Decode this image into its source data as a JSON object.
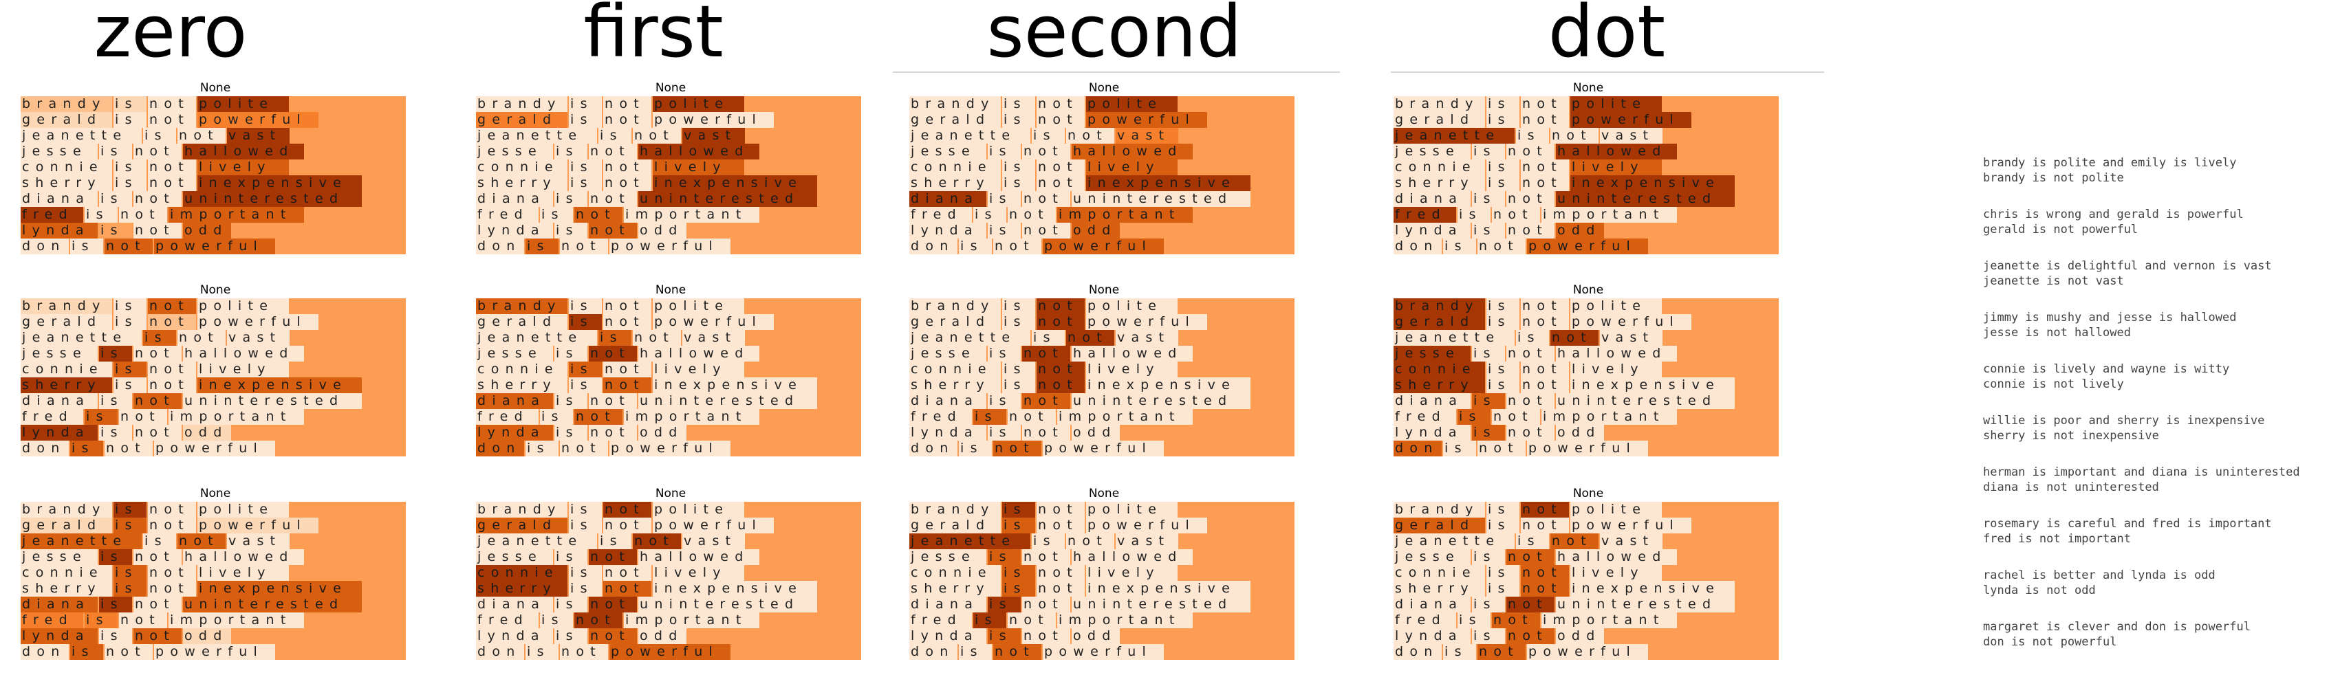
{
  "columns": [
    {
      "title": "zero",
      "panels": [
        {
          "label": "None",
          "rows": [
            [
              2,
              1,
              0,
              6
            ],
            [
              1,
              0,
              0,
              4
            ],
            [
              0,
              0,
              0,
              6
            ],
            [
              0,
              0,
              0,
              6
            ],
            [
              0,
              0,
              0,
              5
            ],
            [
              0,
              0,
              0,
              6
            ],
            [
              0,
              0,
              0,
              6
            ],
            [
              6,
              0,
              0,
              5
            ],
            [
              5,
              3,
              0,
              5
            ],
            [
              0,
              0,
              5,
              5
            ]
          ]
        },
        {
          "label": "None",
          "rows": [
            [
              1,
              0,
              5,
              0
            ],
            [
              0,
              0,
              2,
              0
            ],
            [
              0,
              5,
              0,
              0
            ],
            [
              0,
              6,
              0,
              0
            ],
            [
              0,
              5,
              0,
              0
            ],
            [
              6,
              0,
              0,
              5
            ],
            [
              0,
              0,
              5,
              0
            ],
            [
              0,
              5,
              0,
              0
            ],
            [
              6,
              0,
              0,
              1
            ],
            [
              0,
              5,
              0,
              0
            ]
          ]
        },
        {
          "label": "None",
          "rows": [
            [
              0,
              6,
              0,
              0
            ],
            [
              1,
              5,
              0,
              1
            ],
            [
              5,
              0,
              5,
              0
            ],
            [
              0,
              6,
              0,
              0
            ],
            [
              0,
              5,
              0,
              0
            ],
            [
              0,
              5,
              0,
              5
            ],
            [
              5,
              6,
              0,
              5
            ],
            [
              4,
              4,
              0,
              0
            ],
            [
              5,
              0,
              5,
              1
            ],
            [
              0,
              5,
              0,
              0
            ]
          ]
        }
      ]
    },
    {
      "title": "first",
      "panels": [
        {
          "label": "None",
          "rows": [
            [
              0,
              0,
              0,
              6
            ],
            [
              4,
              0,
              0,
              0
            ],
            [
              0,
              0,
              0,
              6
            ],
            [
              0,
              0,
              0,
              6
            ],
            [
              0,
              0,
              0,
              5
            ],
            [
              0,
              0,
              0,
              6
            ],
            [
              0,
              0,
              0,
              6
            ],
            [
              0,
              0,
              5,
              0
            ],
            [
              0,
              0,
              5,
              0
            ],
            [
              0,
              5,
              0,
              0
            ]
          ]
        },
        {
          "label": "None",
          "rows": [
            [
              5,
              0,
              0,
              0
            ],
            [
              0,
              6,
              0,
              0
            ],
            [
              0,
              5,
              0,
              0
            ],
            [
              0,
              0,
              6,
              0
            ],
            [
              0,
              5,
              0,
              0
            ],
            [
              0,
              0,
              5,
              0
            ],
            [
              5,
              0,
              0,
              0
            ],
            [
              0,
              0,
              5,
              0
            ],
            [
              5,
              0,
              0,
              0
            ],
            [
              5,
              0,
              0,
              0
            ]
          ]
        },
        {
          "label": "None",
          "rows": [
            [
              0,
              0,
              6,
              0
            ],
            [
              5,
              0,
              0,
              0
            ],
            [
              0,
              0,
              6,
              0
            ],
            [
              0,
              0,
              6,
              0
            ],
            [
              6,
              0,
              0,
              0
            ],
            [
              6,
              0,
              5,
              0
            ],
            [
              0,
              0,
              6,
              0
            ],
            [
              0,
              0,
              6,
              0
            ],
            [
              0,
              0,
              5,
              0
            ],
            [
              0,
              0,
              0,
              5
            ]
          ]
        }
      ]
    },
    {
      "title": "second",
      "panels": [
        {
          "label": "None",
          "rows": [
            [
              0,
              0,
              0,
              6
            ],
            [
              0,
              0,
              0,
              5
            ],
            [
              0,
              0,
              0,
              4
            ],
            [
              0,
              0,
              0,
              5
            ],
            [
              0,
              0,
              0,
              5
            ],
            [
              0,
              0,
              0,
              6
            ],
            [
              6,
              0,
              0,
              0
            ],
            [
              0,
              0,
              0,
              5
            ],
            [
              0,
              0,
              0,
              5
            ],
            [
              0,
              0,
              0,
              5
            ]
          ]
        },
        {
          "label": "None",
          "rows": [
            [
              0,
              0,
              6,
              0
            ],
            [
              0,
              0,
              6,
              0
            ],
            [
              0,
              0,
              6,
              0
            ],
            [
              0,
              0,
              6,
              0
            ],
            [
              0,
              0,
              6,
              0
            ],
            [
              0,
              0,
              6,
              0
            ],
            [
              0,
              0,
              5,
              0
            ],
            [
              0,
              5,
              0,
              0
            ],
            [
              0,
              0,
              0,
              0
            ],
            [
              0,
              0,
              5,
              0
            ]
          ]
        },
        {
          "label": "None",
          "rows": [
            [
              0,
              6,
              0,
              0
            ],
            [
              0,
              5,
              0,
              0
            ],
            [
              6,
              0,
              0,
              0
            ],
            [
              0,
              5,
              0,
              0
            ],
            [
              0,
              5,
              0,
              0
            ],
            [
              0,
              5,
              0,
              0
            ],
            [
              0,
              6,
              0,
              0
            ],
            [
              0,
              6,
              0,
              0
            ],
            [
              0,
              5,
              0,
              0
            ],
            [
              0,
              0,
              5,
              0
            ]
          ]
        }
      ]
    },
    {
      "title": "dot",
      "panels": [
        {
          "label": "None",
          "rows": [
            [
              0,
              0,
              0,
              6
            ],
            [
              0,
              0,
              0,
              6
            ],
            [
              6,
              0,
              0,
              0
            ],
            [
              0,
              0,
              0,
              6
            ],
            [
              0,
              0,
              0,
              5
            ],
            [
              0,
              0,
              0,
              6
            ],
            [
              0,
              0,
              0,
              6
            ],
            [
              6,
              0,
              0,
              0
            ],
            [
              0,
              0,
              0,
              5
            ],
            [
              0,
              0,
              0,
              5
            ]
          ]
        },
        {
          "label": "None",
          "rows": [
            [
              6,
              0,
              0,
              0
            ],
            [
              6,
              0,
              0,
              0
            ],
            [
              0,
              0,
              6,
              0
            ],
            [
              6,
              0,
              0,
              0
            ],
            [
              6,
              0,
              0,
              0
            ],
            [
              6,
              0,
              0,
              0
            ],
            [
              0,
              5,
              0,
              0
            ],
            [
              0,
              5,
              0,
              0
            ],
            [
              0,
              5,
              0,
              0
            ],
            [
              5,
              0,
              0,
              0
            ]
          ]
        },
        {
          "label": "None",
          "rows": [
            [
              0,
              0,
              6,
              0
            ],
            [
              5,
              0,
              0,
              0
            ],
            [
              0,
              0,
              5,
              0
            ],
            [
              0,
              0,
              5,
              0
            ],
            [
              0,
              0,
              5,
              0
            ],
            [
              0,
              0,
              5,
              0
            ],
            [
              0,
              0,
              6,
              0
            ],
            [
              0,
              0,
              5,
              0
            ],
            [
              0,
              0,
              5,
              0
            ],
            [
              0,
              0,
              5,
              0
            ]
          ]
        }
      ]
    }
  ],
  "sentences": [
    [
      "brandy",
      "is",
      "not",
      "polite"
    ],
    [
      "gerald",
      "is",
      "not",
      "powerful"
    ],
    [
      "jeanette",
      "is",
      "not",
      "vast"
    ],
    [
      "jesse",
      "is",
      "not",
      "hallowed"
    ],
    [
      "connie",
      "is",
      "not",
      "lively"
    ],
    [
      "sherry",
      "is",
      "not",
      "inexpensive"
    ],
    [
      "diana",
      "is",
      "not",
      "uninterested"
    ],
    [
      "fred",
      "is",
      "not",
      "important"
    ],
    [
      "lynda",
      "is",
      "not",
      "odd"
    ],
    [
      "don",
      "is",
      "not",
      "powerful"
    ]
  ],
  "pairs": [
    {
      "premise": "brandy is polite and emily is lively",
      "hypothesis": "brandy is not polite"
    },
    {
      "premise": "chris is wrong and gerald is powerful",
      "hypothesis": "gerald is not powerful"
    },
    {
      "premise": "jeanette is delightful and vernon is vast",
      "hypothesis": "jeanette is not vast"
    },
    {
      "premise": "jimmy is mushy and jesse is hallowed",
      "hypothesis": "jesse is not hallowed"
    },
    {
      "premise": "connie is lively and wayne is witty",
      "hypothesis": "connie is not lively"
    },
    {
      "premise": "willie is poor and sherry is inexpensive",
      "hypothesis": "sherry is not inexpensive"
    },
    {
      "premise": "herman is important and diana is uninterested",
      "hypothesis": "diana is not uninterested"
    },
    {
      "premise": "rosemary is careful and fred is important",
      "hypothesis": "fred is not important"
    },
    {
      "premise": "rachel is better and lynda is odd",
      "hypothesis": "lynda is not odd"
    },
    {
      "premise": "margaret is clever and don is powerful",
      "hypothesis": "don is not powerful"
    }
  ],
  "colors": {
    "scale": [
      "#fde7d2",
      "#fdd8b6",
      "#fdc08c",
      "#fda35c",
      "#f57f2b",
      "#d85f10",
      "#a63603"
    ],
    "row_background": "#fd9d54",
    "text": "#222222"
  }
}
